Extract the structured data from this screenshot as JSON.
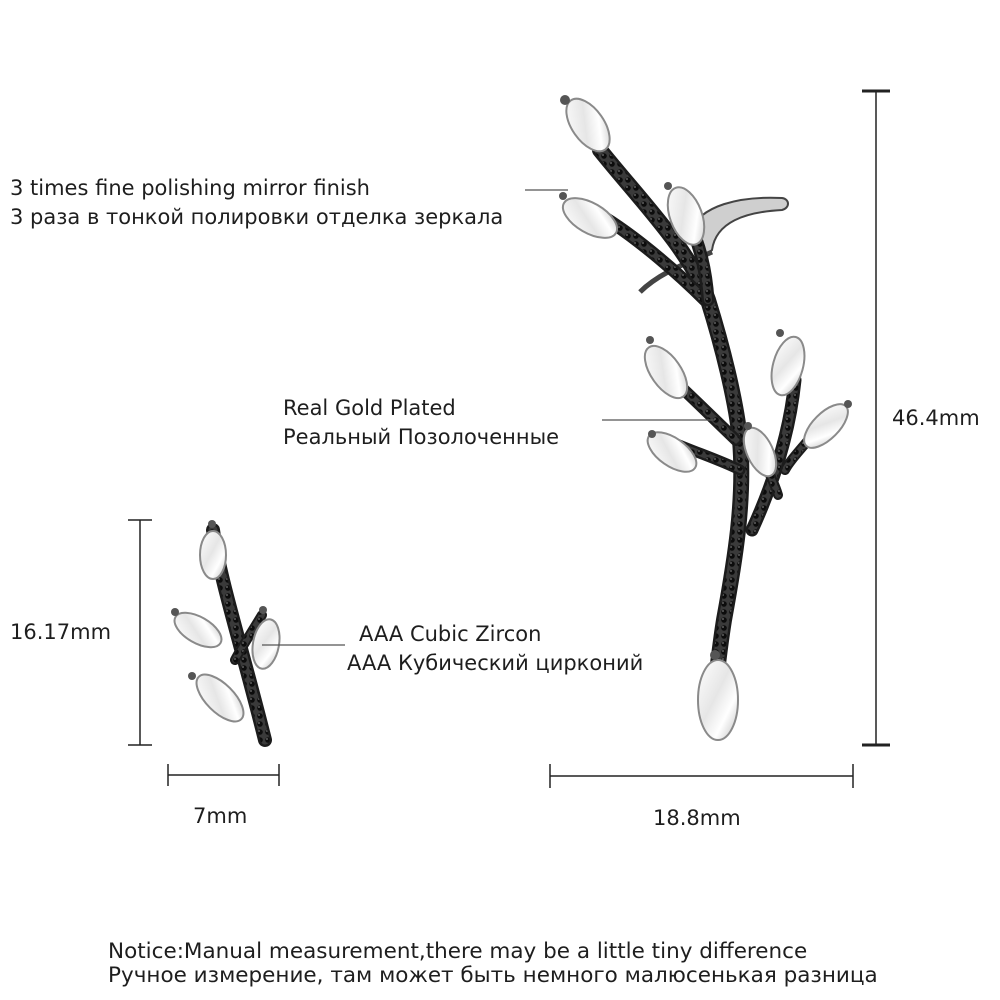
{
  "callouts": {
    "polish": {
      "en": "3 times fine polishing mirror finish",
      "ru": "3 раза в тонкой полировки отделка зеркала"
    },
    "plating": {
      "en": "Real Gold Plated",
      "ru": "Реальный Позолоченные"
    },
    "stone": {
      "en": "AAA Cubic Zircon",
      "ru": "AAA Кубический цирконий"
    }
  },
  "dimensions": {
    "large_height": "46.4mm",
    "large_width": "18.8mm",
    "small_height": "16.17mm",
    "small_width": "7mm"
  },
  "notice": {
    "en": "Notice:Manual measurement,there may be a little tiny difference",
    "ru": "Ручное измерение, там может быть немного малюсенькая разница"
  },
  "colors": {
    "metal": "#2b2b2b",
    "stone_outline": "#8a8a8a",
    "line": "#555555"
  }
}
